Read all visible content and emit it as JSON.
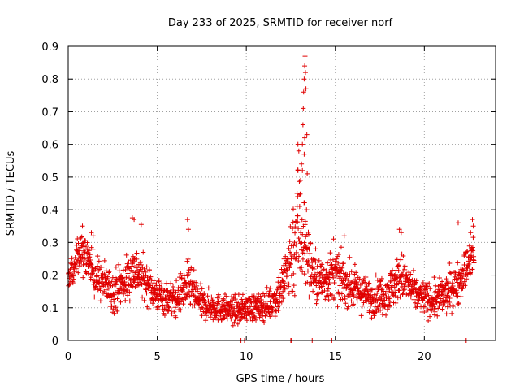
{
  "chart_data": {
    "type": "scatter",
    "title": "Day 233 of 2025, SRMTID for receiver norf",
    "xlabel": "GPS time / hours",
    "ylabel": "SRMTID / TECUs",
    "xlim": [
      0,
      24
    ],
    "ylim": [
      0,
      0.9
    ],
    "xticks": [
      0,
      5,
      10,
      15,
      20
    ],
    "xtick_labels": [
      "0",
      "5",
      "10",
      "15",
      "20"
    ],
    "yticks": [
      0,
      0.1,
      0.2,
      0.3,
      0.4,
      0.5,
      0.6,
      0.7,
      0.8,
      0.9
    ],
    "ytick_labels": [
      "0",
      "0.1",
      "0.2",
      "0.3",
      "0.4",
      "0.5",
      "0.6",
      "0.7",
      "0.8",
      "0.9"
    ],
    "grid": true,
    "marker": "+",
    "marker_color": "#e00000",
    "series": [
      {
        "name": "SRMTID",
        "profile": {
          "x": [
            0,
            0.4,
            0.8,
            1.5,
            2.5,
            3.2,
            3.7,
            4.2,
            5,
            6,
            6.7,
            7.5,
            8.5,
            9.5,
            10,
            10.8,
            11.5,
            12,
            12.4,
            12.7,
            13,
            13.2,
            13.5,
            14,
            14.5,
            15,
            16,
            17,
            18,
            18.7,
            19.5,
            20.5,
            21.2,
            21.8,
            22.3,
            22.8
          ],
          "mean": [
            0.19,
            0.24,
            0.27,
            0.2,
            0.15,
            0.18,
            0.22,
            0.19,
            0.14,
            0.12,
            0.17,
            0.11,
            0.1,
            0.09,
            0.1,
            0.1,
            0.12,
            0.16,
            0.24,
            0.3,
            0.36,
            0.32,
            0.24,
            0.18,
            0.19,
            0.2,
            0.16,
            0.13,
            0.15,
            0.2,
            0.14,
            0.12,
            0.14,
            0.17,
            0.22,
            0.26
          ],
          "spread": [
            0.05,
            0.06,
            0.06,
            0.06,
            0.06,
            0.07,
            0.07,
            0.06,
            0.05,
            0.05,
            0.07,
            0.045,
            0.04,
            0.04,
            0.04,
            0.04,
            0.05,
            0.07,
            0.12,
            0.16,
            0.2,
            0.17,
            0.1,
            0.07,
            0.07,
            0.07,
            0.06,
            0.05,
            0.06,
            0.07,
            0.05,
            0.05,
            0.06,
            0.06,
            0.06,
            0.06
          ]
        },
        "sample_count": 1800,
        "x_end": 22.8,
        "outliers": [
          [
            12.9,
            0.6
          ],
          [
            12.95,
            0.58
          ],
          [
            13.05,
            0.49
          ],
          [
            13.1,
            0.54
          ],
          [
            13.15,
            0.6
          ],
          [
            13.18,
            0.66
          ],
          [
            13.2,
            0.71
          ],
          [
            13.22,
            0.76
          ],
          [
            13.25,
            0.8
          ],
          [
            13.28,
            0.84
          ],
          [
            13.3,
            0.87
          ],
          [
            13.32,
            0.82
          ],
          [
            13.35,
            0.77
          ],
          [
            13.28,
            0.62
          ],
          [
            13.25,
            0.57
          ],
          [
            13.15,
            0.52
          ],
          [
            12.85,
            0.45
          ],
          [
            12.88,
            0.44
          ],
          [
            13.4,
            0.63
          ],
          [
            13.42,
            0.51
          ],
          [
            13.38,
            0.4
          ],
          [
            12.9,
            0.52
          ],
          [
            3.6,
            0.375
          ],
          [
            3.7,
            0.37
          ],
          [
            4.1,
            0.355
          ],
          [
            6.7,
            0.37
          ],
          [
            6.75,
            0.34
          ],
          [
            1.3,
            0.33
          ],
          [
            1.4,
            0.32
          ],
          [
            0.8,
            0.35
          ],
          [
            18.6,
            0.34
          ],
          [
            18.7,
            0.33
          ],
          [
            21.9,
            0.36
          ],
          [
            22.6,
            0.33
          ],
          [
            22.7,
            0.37
          ],
          [
            22.75,
            0.35
          ],
          [
            14.9,
            0.31
          ],
          [
            15.5,
            0.32
          ]
        ],
        "zero_marks": [
          9.7,
          9.9,
          12.5,
          12.55,
          13.7,
          14.8,
          22.3,
          22.35
        ]
      }
    ]
  }
}
